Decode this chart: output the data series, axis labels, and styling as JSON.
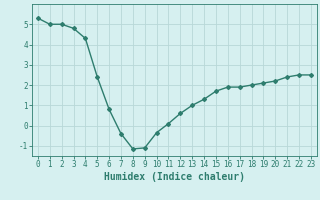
{
  "x": [
    0,
    1,
    2,
    3,
    4,
    5,
    6,
    7,
    8,
    9,
    10,
    11,
    12,
    13,
    14,
    15,
    16,
    17,
    18,
    19,
    20,
    21,
    22,
    23
  ],
  "y": [
    5.3,
    5.0,
    5.0,
    4.8,
    4.3,
    2.4,
    0.8,
    -0.4,
    -1.15,
    -1.1,
    -0.35,
    0.1,
    0.6,
    1.0,
    1.3,
    1.7,
    1.9,
    1.9,
    2.0,
    2.1,
    2.2,
    2.4,
    2.5,
    2.5
  ],
  "line_color": "#2e7d6e",
  "marker": "D",
  "marker_size": 2.0,
  "bg_color": "#d6f0f0",
  "grid_color": "#b8d8d8",
  "axis_color": "#2e7d6e",
  "tick_color": "#2e7d6e",
  "xlabel": "Humidex (Indice chaleur)",
  "xlabel_fontsize": 7,
  "ylim": [
    -1.5,
    6.0
  ],
  "xlim": [
    -0.5,
    23.5
  ],
  "yticks": [
    -1,
    0,
    1,
    2,
    3,
    4,
    5
  ],
  "xticks": [
    0,
    1,
    2,
    3,
    4,
    5,
    6,
    7,
    8,
    9,
    10,
    11,
    12,
    13,
    14,
    15,
    16,
    17,
    18,
    19,
    20,
    21,
    22,
    23
  ],
  "tick_fontsize": 5.5,
  "line_width": 1.0
}
